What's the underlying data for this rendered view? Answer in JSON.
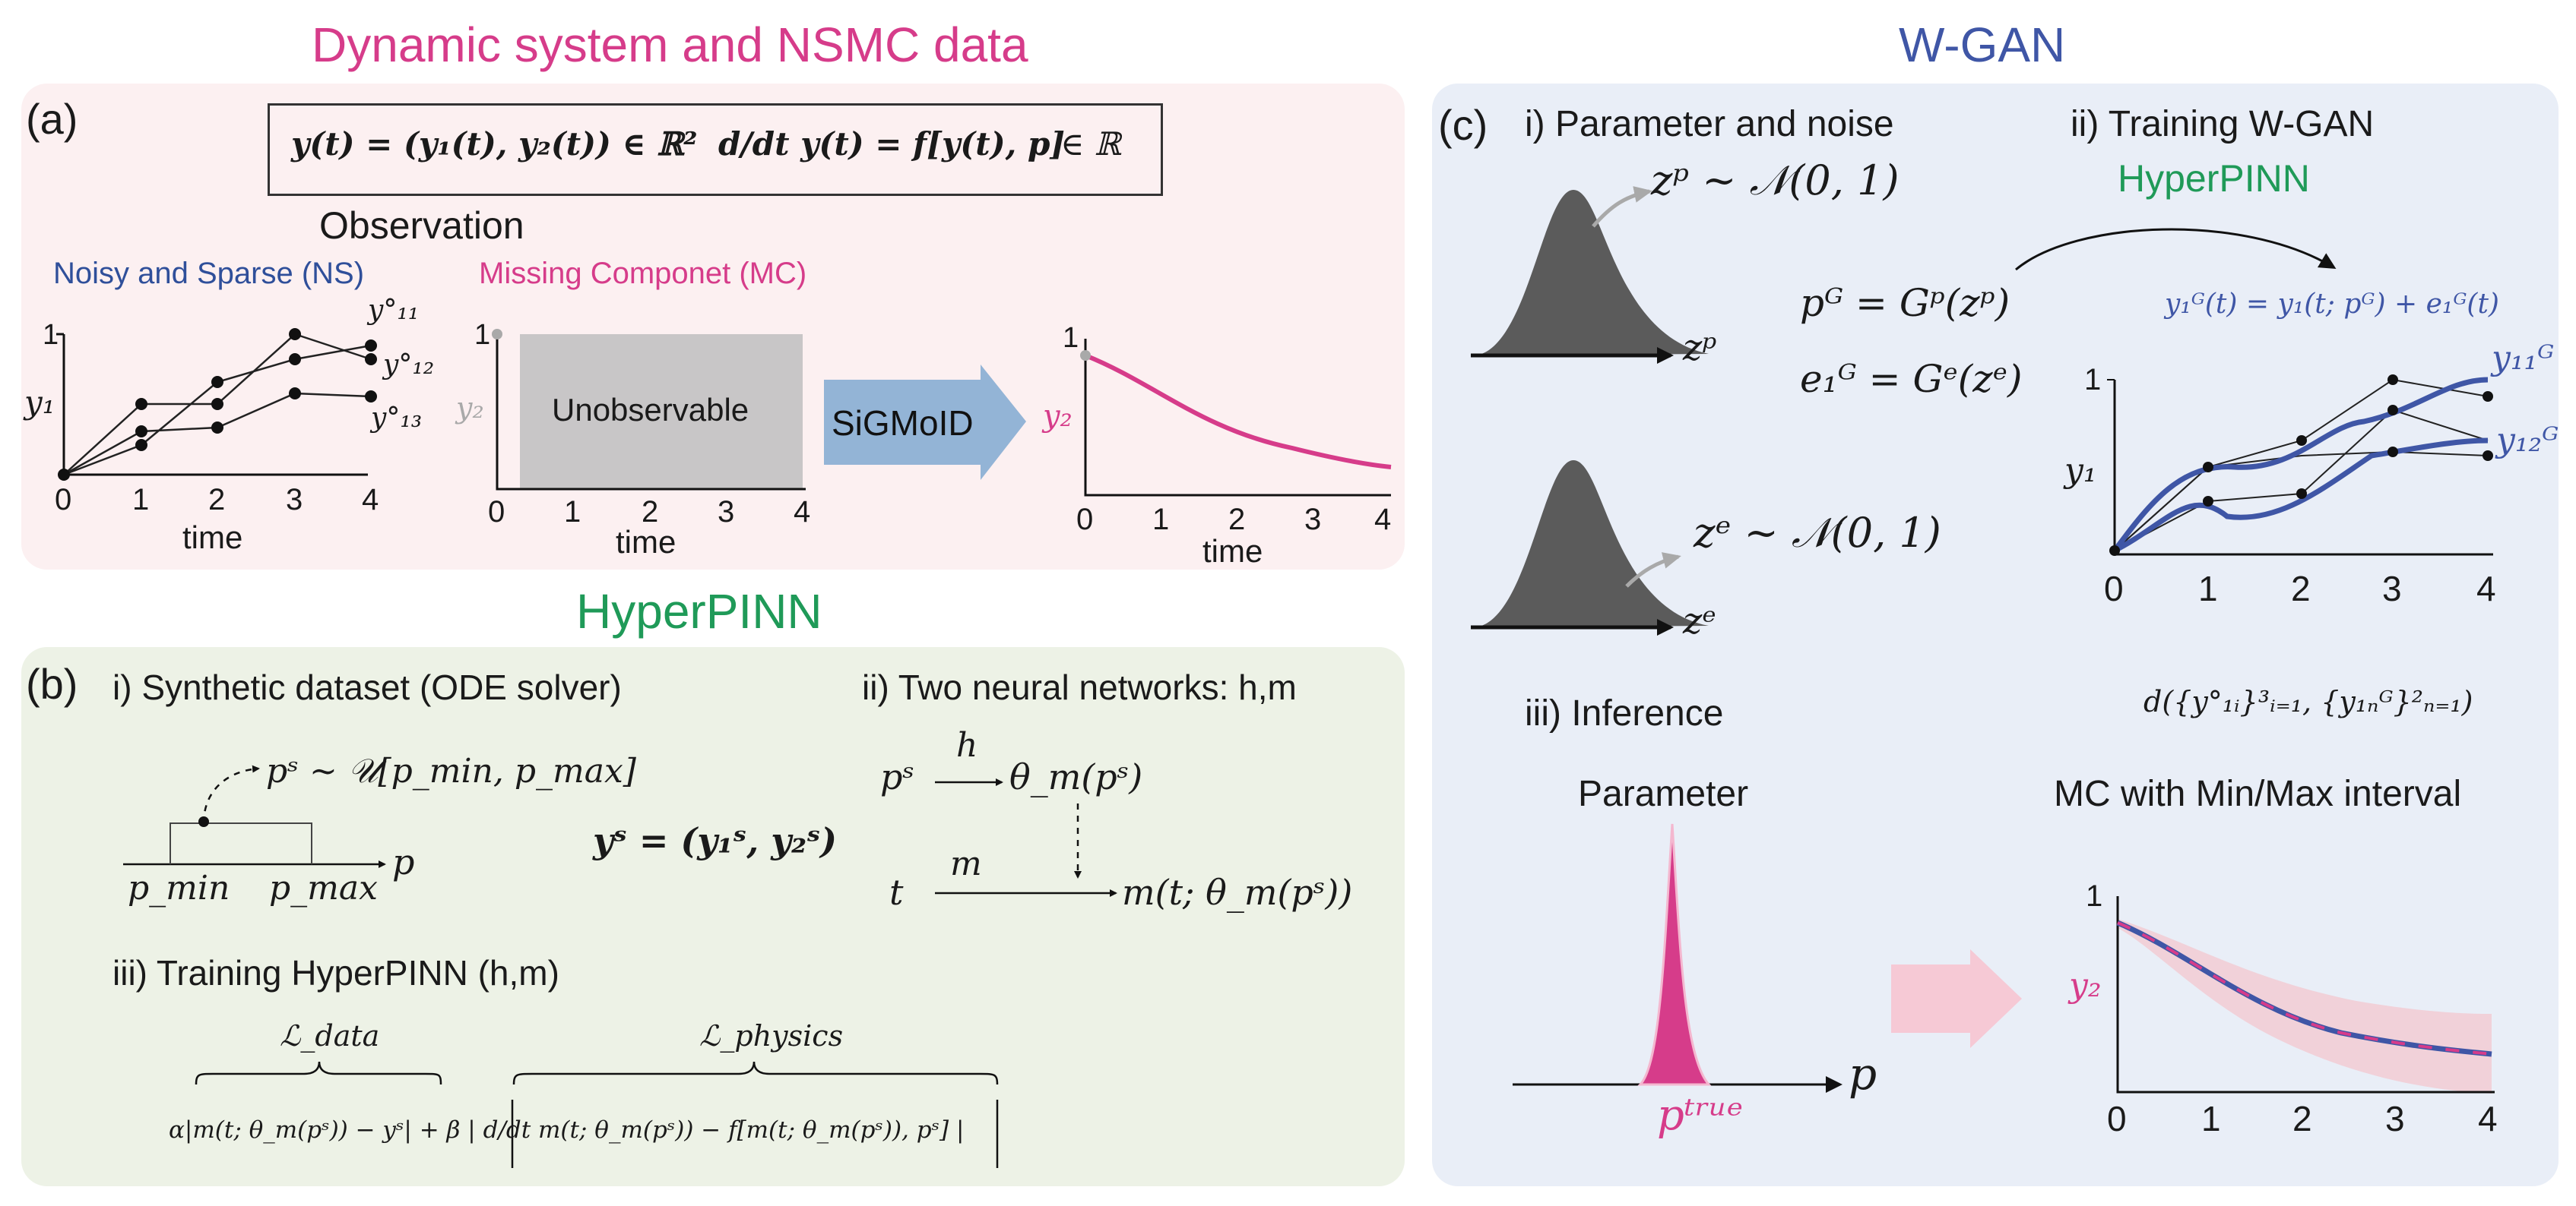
{
  "titles": {
    "top_left": "Dynamic system and NSMC data",
    "top_right": "W-GAN",
    "mid_left": "HyperPINN"
  },
  "panel_a": {
    "label": "(a)",
    "equation_state": "y(t) = (y₁(t), y₂(t)) ∈ ℝ²",
    "equation_ode": "d/dt y(t) = f[y(t), p]",
    "equation_param": "p ∈ ℝ",
    "observation": "Observation",
    "ns_title": "Noisy and Sparse (NS)",
    "mc_title": "Missing Componet (MC)",
    "ns_ylabel": "y₁",
    "mc_ylabel": "y₂",
    "sig_ylabel": "y₂",
    "xlabel": "time",
    "ticks": [
      "0",
      "1",
      "2",
      "3",
      "4"
    ],
    "ytick": "1",
    "series_labels": [
      "y°₁₁",
      "y°₁₂",
      "y°₁₃"
    ],
    "unobservable": "Unobservable",
    "method_arrow": "SiGMoID"
  },
  "panel_b": {
    "label": "(b)",
    "step1": "i) Synthetic dataset (ODE solver)",
    "step2": "ii) Two neural networks: h,m",
    "step3": "iii) Training HyperPINN (h,m)",
    "prior": "pˢ ~ 𝒰[p_min, p_max]",
    "p_axis": "p",
    "pmin": "p_min",
    "pmax": "p_max",
    "ys": "yˢ = (y₁ˢ, y₂ˢ)",
    "ps": "pˢ",
    "h": "h",
    "theta": "θ_m(pˢ)",
    "t": "t",
    "m": "m",
    "mout": "m(t; θ_m(pˢ))",
    "l_data": "ℒ_data",
    "l_physics": "ℒ_physics",
    "loss": "α|m(t; θ_m(pˢ)) − yˢ| + β | d/dt m(t; θ_m(pˢ)) − f[m(t; θ_m(pˢ)), pˢ] |"
  },
  "panel_c": {
    "label": "(c)",
    "step1": "i) Parameter and noise",
    "step2": "ii) Training W-GAN",
    "step3": "iii) Inference",
    "hyperpinn": "HyperPINN",
    "zp_dist": "zᵖ ~ 𝒩(0, 1)",
    "ze_dist": "zᵉ ~ 𝒩(0, 1)",
    "zp": "zᵖ",
    "ze": "zᵉ",
    "pg": "pᴳ = Gᵖ(zᵖ)",
    "eg": "e₁ᴳ = Gᵉ(zᵉ)",
    "gen_eq": "y₁ᴳ(t) = y₁(t; pᴳ) + e₁ᴳ(t)",
    "y1": "y₁",
    "y11g": "y₁₁ᴳ",
    "y12g": "y₁₂ᴳ",
    "ticks": [
      "0",
      "1",
      "2",
      "3",
      "4"
    ],
    "ytick": "1",
    "distance": "d({y°₁ᵢ}³ᵢ₌₁, {y₁ₙᴳ}²ₙ₌₁)",
    "param_title": "Parameter",
    "mc_title": "MC with Min/Max interval",
    "p_axis": "p",
    "ptrue": "pᵗʳᵘᵉ",
    "y2": "y₂"
  },
  "colors": {
    "pink": "#d63c8a",
    "blue": "#3f56a6",
    "green": "#1f9a58",
    "panel_a_bg": "#fcf0f1",
    "panel_b_bg": "#edf2e6",
    "panel_c_bg": "#e9eef7",
    "gray": "#c8c6c7"
  }
}
